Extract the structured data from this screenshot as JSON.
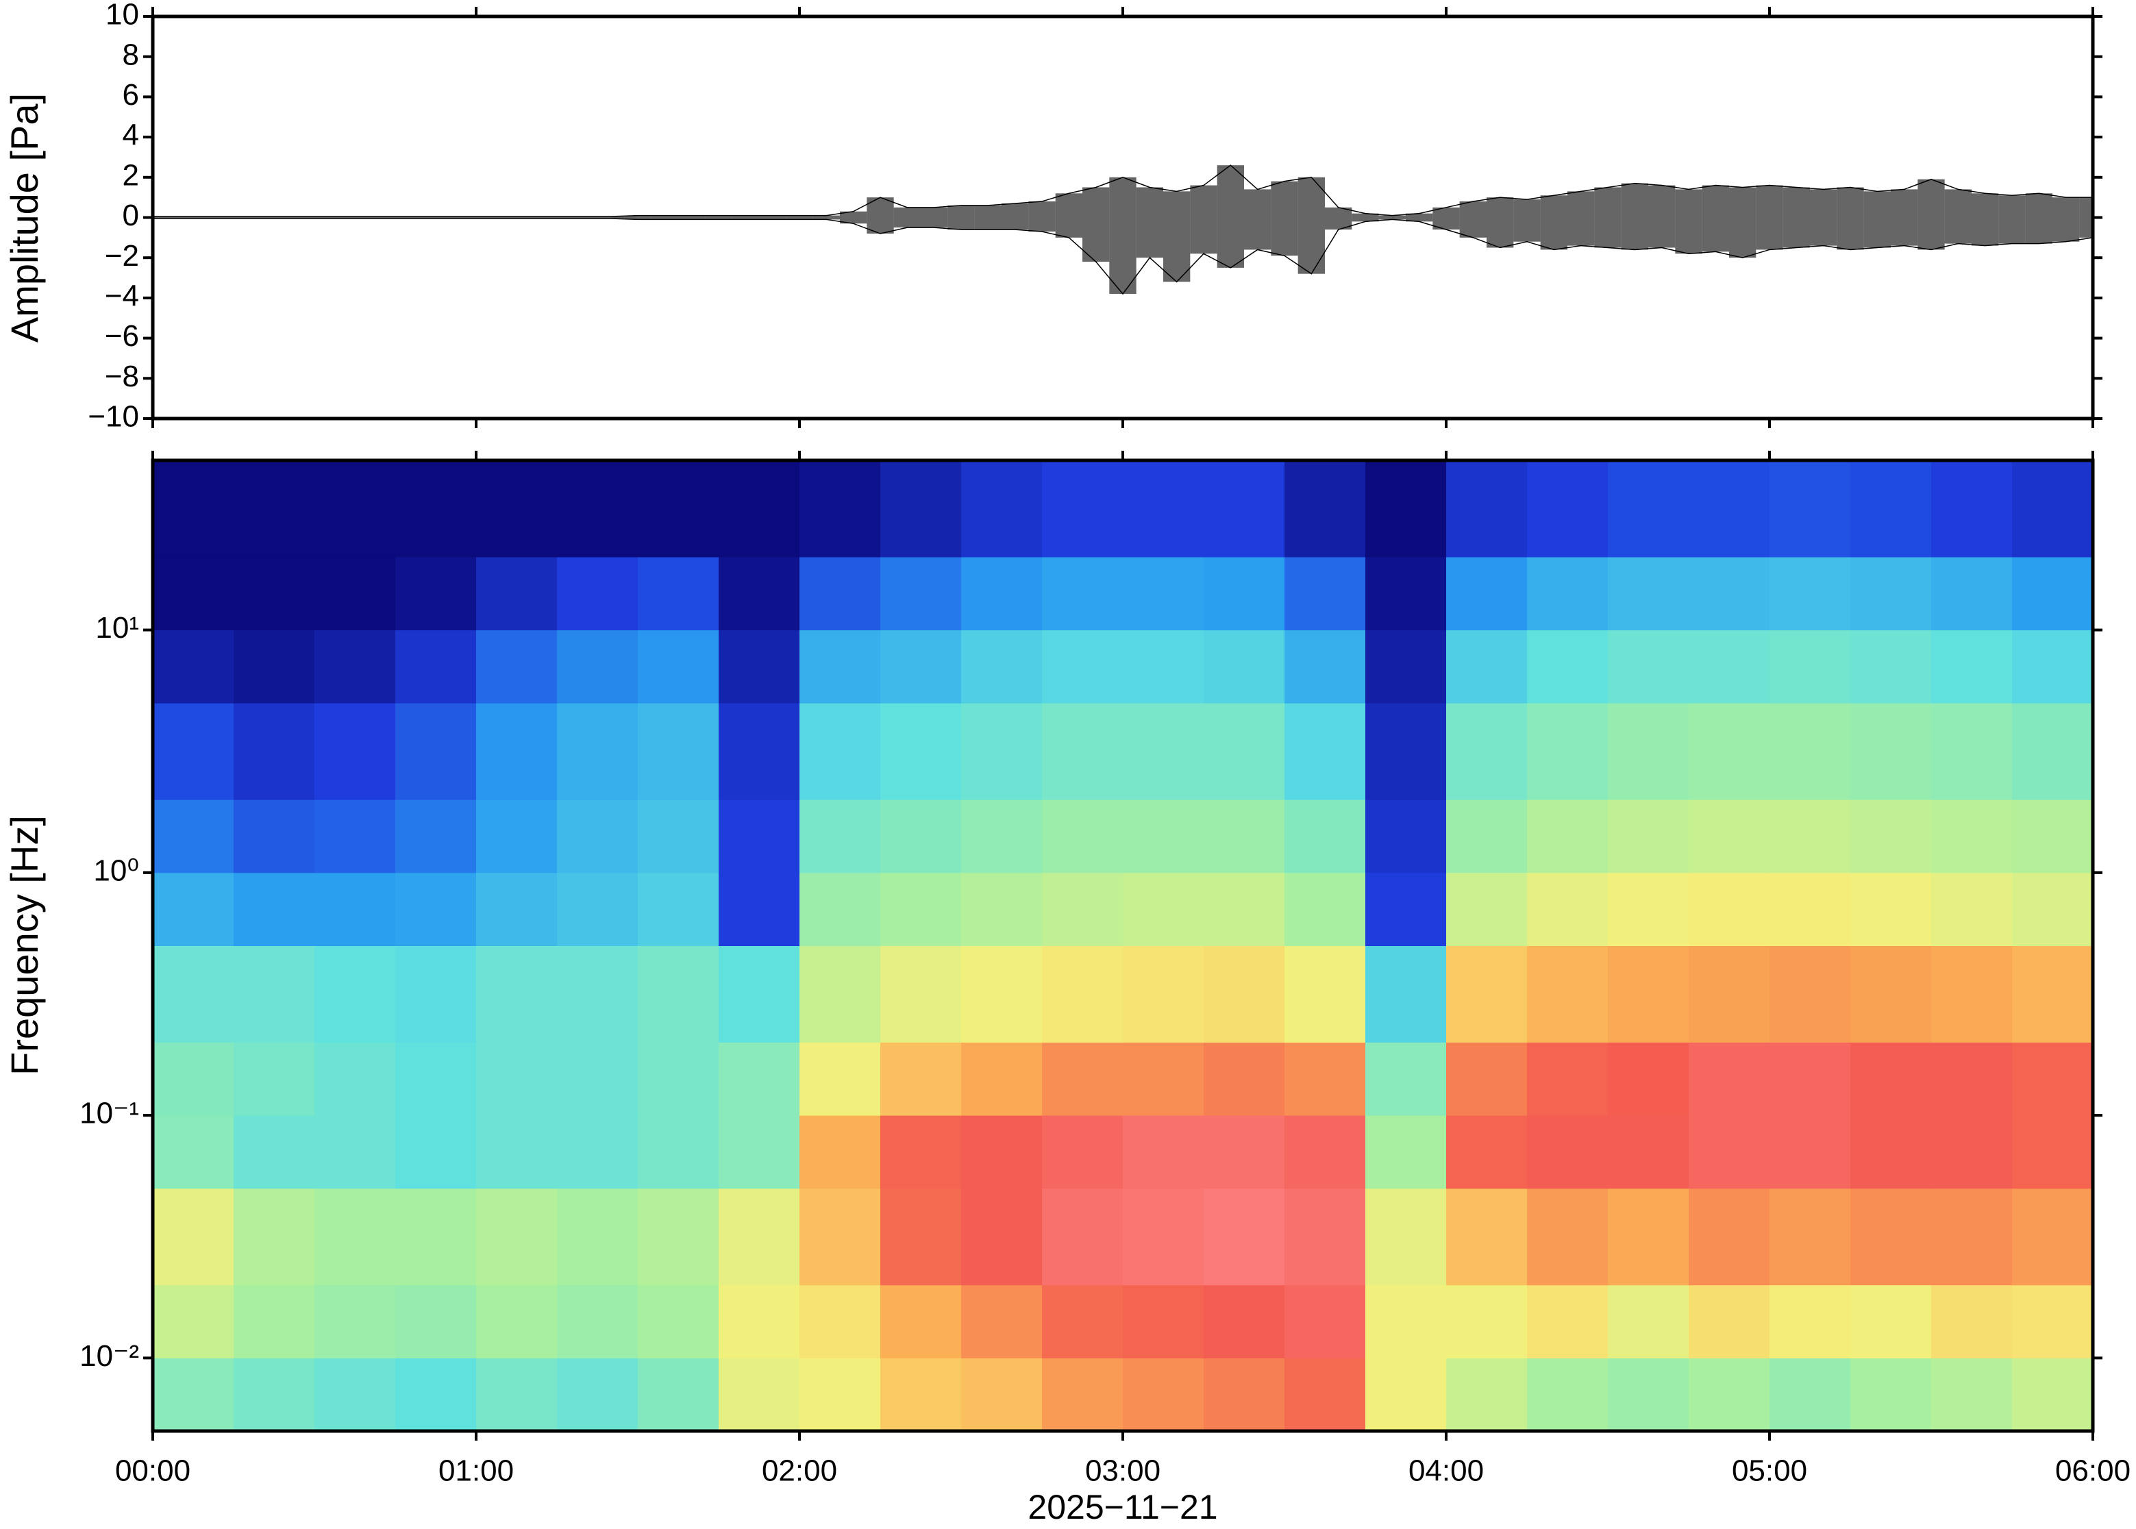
{
  "chart_data": [
    {
      "type": "band",
      "ylabel": "Amplitude [Pa]",
      "x": [
        "00:00",
        "00:05",
        "00:10",
        "00:15",
        "00:20",
        "00:25",
        "00:30",
        "00:35",
        "00:40",
        "00:45",
        "00:50",
        "00:55",
        "01:00",
        "01:05",
        "01:10",
        "01:15",
        "01:20",
        "01:25",
        "01:30",
        "01:35",
        "01:40",
        "01:45",
        "01:50",
        "01:55",
        "02:00",
        "02:05",
        "02:10",
        "02:15",
        "02:20",
        "02:25",
        "02:30",
        "02:35",
        "02:40",
        "02:45",
        "02:50",
        "02:55",
        "03:00",
        "03:05",
        "03:10",
        "03:15",
        "03:20",
        "03:25",
        "03:30",
        "03:35",
        "03:40",
        "03:45",
        "03:50",
        "03:55",
        "04:00",
        "04:05",
        "04:10",
        "04:15",
        "04:20",
        "04:25",
        "04:30",
        "04:35",
        "04:40",
        "04:45",
        "04:50",
        "04:55",
        "05:00",
        "05:05",
        "05:10",
        "05:15",
        "05:20",
        "05:25",
        "05:30",
        "05:35",
        "05:40",
        "05:45",
        "05:50",
        "05:55",
        "06:00"
      ],
      "series": [
        {
          "color": "#000000",
          "values": [
            0.05,
            0.05,
            0.05,
            0.05,
            0.05,
            0.05,
            0.05,
            0.05,
            0.05,
            0.05,
            0.05,
            0.05,
            0.05,
            0.05,
            0.05,
            0.05,
            0.05,
            0.05,
            0.1,
            0.1,
            0.1,
            0.1,
            0.1,
            0.1,
            0.1,
            0.1,
            0.3,
            1.0,
            0.5,
            0.5,
            0.6,
            0.6,
            0.7,
            0.8,
            1.2,
            1.5,
            2.0,
            1.5,
            1.3,
            1.6,
            2.6,
            1.4,
            1.8,
            2.0,
            0.5,
            0.2,
            0.1,
            0.2,
            0.5,
            0.8,
            1.0,
            0.9,
            1.1,
            1.3,
            1.5,
            1.7,
            1.6,
            1.4,
            1.6,
            1.5,
            1.6,
            1.5,
            1.4,
            1.5,
            1.3,
            1.4,
            1.9,
            1.4,
            1.2,
            1.1,
            1.2,
            1.0,
            1.0
          ]
        },
        {
          "color": "#000000",
          "values": [
            -0.05,
            -0.05,
            -0.05,
            -0.05,
            -0.05,
            -0.05,
            -0.05,
            -0.05,
            -0.05,
            -0.05,
            -0.05,
            -0.05,
            -0.05,
            -0.05,
            -0.05,
            -0.05,
            -0.05,
            -0.05,
            -0.1,
            -0.1,
            -0.1,
            -0.1,
            -0.1,
            -0.1,
            -0.1,
            -0.1,
            -0.3,
            -0.8,
            -0.5,
            -0.5,
            -0.6,
            -0.6,
            -0.6,
            -0.7,
            -1.0,
            -2.2,
            -3.8,
            -2.0,
            -3.2,
            -1.8,
            -2.5,
            -1.6,
            -1.9,
            -2.8,
            -0.6,
            -0.2,
            -0.1,
            -0.2,
            -0.6,
            -1.0,
            -1.5,
            -1.2,
            -1.6,
            -1.4,
            -1.5,
            -1.6,
            -1.5,
            -1.8,
            -1.7,
            -2.0,
            -1.6,
            -1.5,
            -1.4,
            -1.6,
            -1.5,
            -1.4,
            -1.6,
            -1.3,
            -1.4,
            -1.3,
            -1.3,
            -1.2,
            -1.0
          ]
        }
      ],
      "xlim": [
        "00:00",
        "06:00"
      ],
      "ylim": [
        -10,
        10
      ],
      "yticks": [
        10,
        8,
        6,
        4,
        2,
        0,
        {
          "value": -2,
          "label": "−2"
        },
        {
          "value": -4,
          "label": "−4"
        },
        {
          "value": -6,
          "label": "−6"
        },
        {
          "value": -8,
          "label": "−8"
        },
        {
          "value": -10,
          "label": "−10"
        }
      ]
    },
    {
      "type": "heatmap",
      "ylabel": "Frequency [Hz]",
      "xlabel": "2025−11−21",
      "x_edges": [
        "00:00",
        "00:15",
        "00:30",
        "00:45",
        "01:00",
        "01:15",
        "01:30",
        "01:45",
        "02:00",
        "02:15",
        "02:30",
        "02:45",
        "03:00",
        "03:15",
        "03:30",
        "03:45",
        "04:00",
        "04:15",
        "04:30",
        "04:45",
        "05:00",
        "05:15",
        "05:30",
        "05:45",
        "06:00"
      ],
      "y_edges": [
        0.005,
        0.01,
        0.02,
        0.05,
        0.1,
        0.2,
        0.5,
        1,
        2,
        5,
        10,
        20,
        50
      ],
      "z": [
        [
          0.45,
          0.42,
          0.4,
          0.38,
          0.42,
          0.4,
          0.44,
          0.6,
          0.62,
          0.7,
          0.72,
          0.78,
          0.8,
          0.82,
          0.85,
          0.62,
          0.55,
          0.5,
          0.48,
          0.5,
          0.47,
          0.5,
          0.52,
          0.55
        ],
        [
          0.55,
          0.5,
          0.48,
          0.47,
          0.5,
          0.48,
          0.5,
          0.62,
          0.65,
          0.75,
          0.8,
          0.85,
          0.86,
          0.88,
          0.9,
          0.62,
          0.62,
          0.65,
          0.6,
          0.66,
          0.63,
          0.62,
          0.66,
          0.65
        ],
        [
          0.6,
          0.52,
          0.5,
          0.5,
          0.52,
          0.5,
          0.52,
          0.6,
          0.72,
          0.85,
          0.88,
          0.92,
          0.93,
          0.94,
          0.92,
          0.6,
          0.72,
          0.78,
          0.76,
          0.8,
          0.78,
          0.8,
          0.8,
          0.78
        ],
        [
          0.45,
          0.4,
          0.4,
          0.38,
          0.4,
          0.4,
          0.42,
          0.45,
          0.75,
          0.86,
          0.88,
          0.9,
          0.92,
          0.92,
          0.9,
          0.5,
          0.86,
          0.88,
          0.88,
          0.9,
          0.9,
          0.88,
          0.88,
          0.86
        ],
        [
          0.44,
          0.42,
          0.4,
          0.38,
          0.4,
          0.4,
          0.42,
          0.45,
          0.62,
          0.72,
          0.76,
          0.8,
          0.8,
          0.82,
          0.8,
          0.45,
          0.82,
          0.86,
          0.87,
          0.9,
          0.9,
          0.88,
          0.88,
          0.86
        ],
        [
          0.4,
          0.4,
          0.38,
          0.37,
          0.4,
          0.4,
          0.42,
          0.38,
          0.55,
          0.6,
          0.62,
          0.64,
          0.65,
          0.66,
          0.62,
          0.35,
          0.7,
          0.74,
          0.76,
          0.77,
          0.78,
          0.77,
          0.76,
          0.74
        ],
        [
          0.28,
          0.25,
          0.25,
          0.26,
          0.3,
          0.32,
          0.34,
          0.12,
          0.48,
          0.5,
          0.52,
          0.54,
          0.55,
          0.55,
          0.5,
          0.12,
          0.56,
          0.6,
          0.62,
          0.63,
          0.63,
          0.62,
          0.6,
          0.58
        ],
        [
          0.2,
          0.16,
          0.17,
          0.2,
          0.26,
          0.3,
          0.32,
          0.12,
          0.42,
          0.44,
          0.46,
          0.48,
          0.48,
          0.48,
          0.44,
          0.1,
          0.48,
          0.52,
          0.54,
          0.55,
          0.55,
          0.54,
          0.53,
          0.52
        ],
        [
          0.14,
          0.1,
          0.12,
          0.16,
          0.24,
          0.28,
          0.3,
          0.1,
          0.36,
          0.38,
          0.4,
          0.42,
          0.42,
          0.42,
          0.36,
          0.08,
          0.42,
          0.45,
          0.47,
          0.48,
          0.48,
          0.47,
          0.46,
          0.44
        ],
        [
          0.05,
          0.03,
          0.05,
          0.1,
          0.18,
          0.22,
          0.24,
          0.06,
          0.28,
          0.3,
          0.34,
          0.36,
          0.36,
          0.35,
          0.28,
          0.05,
          0.34,
          0.38,
          0.4,
          0.4,
          0.41,
          0.4,
          0.38,
          0.36
        ],
        [
          0,
          0,
          0,
          0.02,
          0.08,
          0.12,
          0.14,
          0.02,
          0.16,
          0.2,
          0.24,
          0.26,
          0.26,
          0.25,
          0.18,
          0.02,
          0.24,
          0.28,
          0.3,
          0.3,
          0.31,
          0.3,
          0.28,
          0.25
        ],
        [
          0,
          0,
          0,
          0,
          0,
          0,
          0,
          0,
          0.02,
          0.06,
          0.1,
          0.12,
          0.12,
          0.12,
          0.05,
          0,
          0.1,
          0.12,
          0.14,
          0.14,
          0.15,
          0.14,
          0.12,
          0.1
        ]
      ],
      "zlim": [
        0,
        1
      ],
      "colormap": [
        "#0b0b7d",
        "#1f3fe0",
        "#2a9ff0",
        "#5ee0e0",
        "#a8f0a0",
        "#f5f07a",
        "#fbb055",
        "#f45a50",
        "#ff9aa0"
      ],
      "ylog": true,
      "xlim": [
        "00:00",
        "06:00"
      ],
      "ylim": [
        0.005,
        50
      ],
      "xticks": [
        "00:00",
        "01:00",
        "02:00",
        "03:00",
        "04:00",
        "05:00",
        "06:00"
      ],
      "yticks": [
        {
          "value": 0.01,
          "label": "10⁻²"
        },
        {
          "value": 0.1,
          "label": "10⁻¹"
        },
        {
          "value": 1,
          "label": "10⁰"
        },
        {
          "value": 10,
          "label": "10¹"
        }
      ]
    }
  ]
}
